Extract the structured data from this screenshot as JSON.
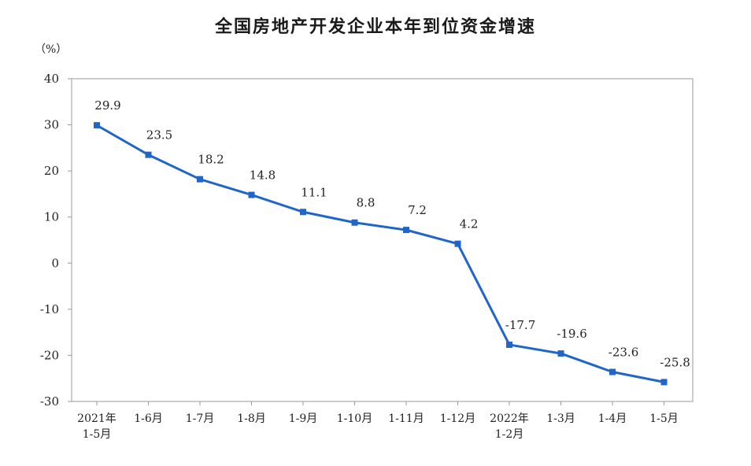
{
  "chart_data": {
    "type": "line",
    "title": "全国房地产开发企业本年到位资金增速",
    "unit_label": "（%）",
    "categories": [
      [
        "2021年",
        "1-5月"
      ],
      [
        "1-6月"
      ],
      [
        "1-7月"
      ],
      [
        "1-8月"
      ],
      [
        "1-9月"
      ],
      [
        "1-10月"
      ],
      [
        "1-11月"
      ],
      [
        "1-12月"
      ],
      [
        "2022年",
        "1-2月"
      ],
      [
        "1-3月"
      ],
      [
        "1-4月"
      ],
      [
        "1-5月"
      ]
    ],
    "values": [
      29.9,
      23.5,
      18.2,
      14.8,
      11.1,
      8.8,
      7.2,
      4.2,
      -17.7,
      -19.6,
      -23.6,
      -25.8
    ],
    "data_labels": [
      "29.9",
      "23.5",
      "18.2",
      "14.8",
      "11.1",
      "8.8",
      "7.2",
      "4.2",
      "-17.7",
      "-19.6",
      "-23.6",
      "-25.8"
    ],
    "ylim": [
      -30,
      40
    ],
    "yticks": [
      -30,
      -20,
      -10,
      0,
      10,
      20,
      30,
      40
    ],
    "ytick_labels": [
      "-30",
      "-20",
      "-10",
      "0",
      "10",
      "20",
      "30",
      "40"
    ],
    "grid": false,
    "legend": "none",
    "colors": {
      "line": "#1f66c8",
      "axis": "#9a9a9a"
    }
  }
}
